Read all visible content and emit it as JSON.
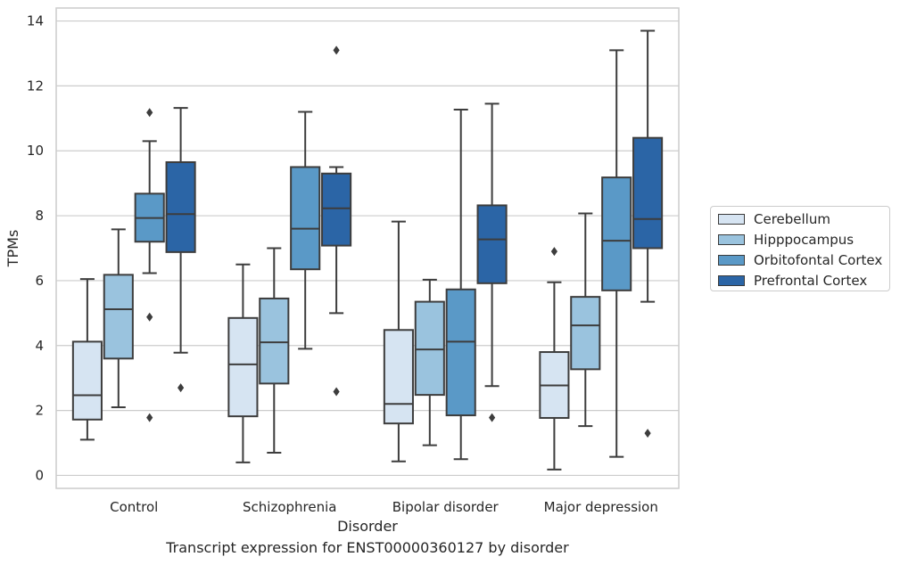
{
  "chart_data": {
    "type": "box",
    "title": "",
    "xlabel": "Disorder",
    "ylabel": "TPMs",
    "caption": "Transcript expression for ENST00000360127 by disorder",
    "ylim": [
      -0.4,
      14.4
    ],
    "yticks": [
      "0",
      "2",
      "4",
      "6",
      "8",
      "10",
      "12",
      "14"
    ],
    "ytick_values": [
      0,
      2,
      4,
      6,
      8,
      10,
      12,
      14
    ],
    "grid": "horizontal",
    "legend_position": "right",
    "categories": [
      "Control",
      "Schizophrenia",
      "Bipolar disorder",
      "Major depression"
    ],
    "series": [
      {
        "name": "Cerebellum",
        "color": "#d6e4f2",
        "boxes": [
          {
            "whisker_low": 1.1,
            "q1": 1.72,
            "median": 2.47,
            "q3": 4.12,
            "whisker_high": 6.05,
            "outliers": []
          },
          {
            "whisker_low": 0.4,
            "q1": 1.82,
            "median": 3.42,
            "q3": 4.85,
            "whisker_high": 6.5,
            "outliers": []
          },
          {
            "whisker_low": 0.43,
            "q1": 1.6,
            "median": 2.2,
            "q3": 4.48,
            "whisker_high": 7.82,
            "outliers": []
          },
          {
            "whisker_low": 0.18,
            "q1": 1.77,
            "median": 2.77,
            "q3": 3.8,
            "whisker_high": 5.95,
            "outliers": [
              6.9
            ]
          }
        ]
      },
      {
        "name": "Hipppocampus",
        "color": "#9ac3de",
        "boxes": [
          {
            "whisker_low": 2.1,
            "q1": 3.6,
            "median": 5.12,
            "q3": 6.18,
            "whisker_high": 7.58,
            "outliers": []
          },
          {
            "whisker_low": 0.7,
            "q1": 2.83,
            "median": 4.1,
            "q3": 5.45,
            "whisker_high": 7.0,
            "outliers": []
          },
          {
            "whisker_low": 0.93,
            "q1": 2.48,
            "median": 3.88,
            "q3": 5.35,
            "whisker_high": 6.03,
            "outliers": []
          },
          {
            "whisker_low": 1.52,
            "q1": 3.27,
            "median": 4.62,
            "q3": 5.5,
            "whisker_high": 8.07,
            "outliers": []
          }
        ]
      },
      {
        "name": "Orbitofontal Cortex",
        "color": "#5a99c7",
        "boxes": [
          {
            "whisker_low": 6.23,
            "q1": 7.2,
            "median": 7.93,
            "q3": 8.68,
            "whisker_high": 10.3,
            "outliers": [
              11.18,
              4.88,
              1.78
            ]
          },
          {
            "whisker_low": 3.9,
            "q1": 6.35,
            "median": 7.6,
            "q3": 9.5,
            "whisker_high": 11.2,
            "outliers": []
          },
          {
            "whisker_low": 0.5,
            "q1": 1.85,
            "median": 4.12,
            "q3": 5.73,
            "whisker_high": 11.27,
            "outliers": []
          },
          {
            "whisker_low": 0.57,
            "q1": 5.7,
            "median": 7.23,
            "q3": 9.18,
            "whisker_high": 13.1,
            "outliers": []
          }
        ]
      },
      {
        "name": "Prefrontal Cortex",
        "color": "#2b65a6",
        "boxes": [
          {
            "whisker_low": 3.78,
            "q1": 6.88,
            "median": 8.05,
            "q3": 9.65,
            "whisker_high": 11.32,
            "outliers": [
              2.7
            ]
          },
          {
            "whisker_low": 5.0,
            "q1": 7.08,
            "median": 8.23,
            "q3": 9.3,
            "whisker_high": 9.5,
            "outliers": [
              13.1,
              2.58
            ]
          },
          {
            "whisker_low": 2.75,
            "q1": 5.92,
            "median": 7.27,
            "q3": 8.32,
            "whisker_high": 11.45,
            "outliers": [
              1.78
            ]
          },
          {
            "whisker_low": 5.35,
            "q1": 7.0,
            "median": 7.9,
            "q3": 10.4,
            "whisker_high": 13.7,
            "outliers": [
              1.3
            ]
          }
        ]
      }
    ]
  }
}
